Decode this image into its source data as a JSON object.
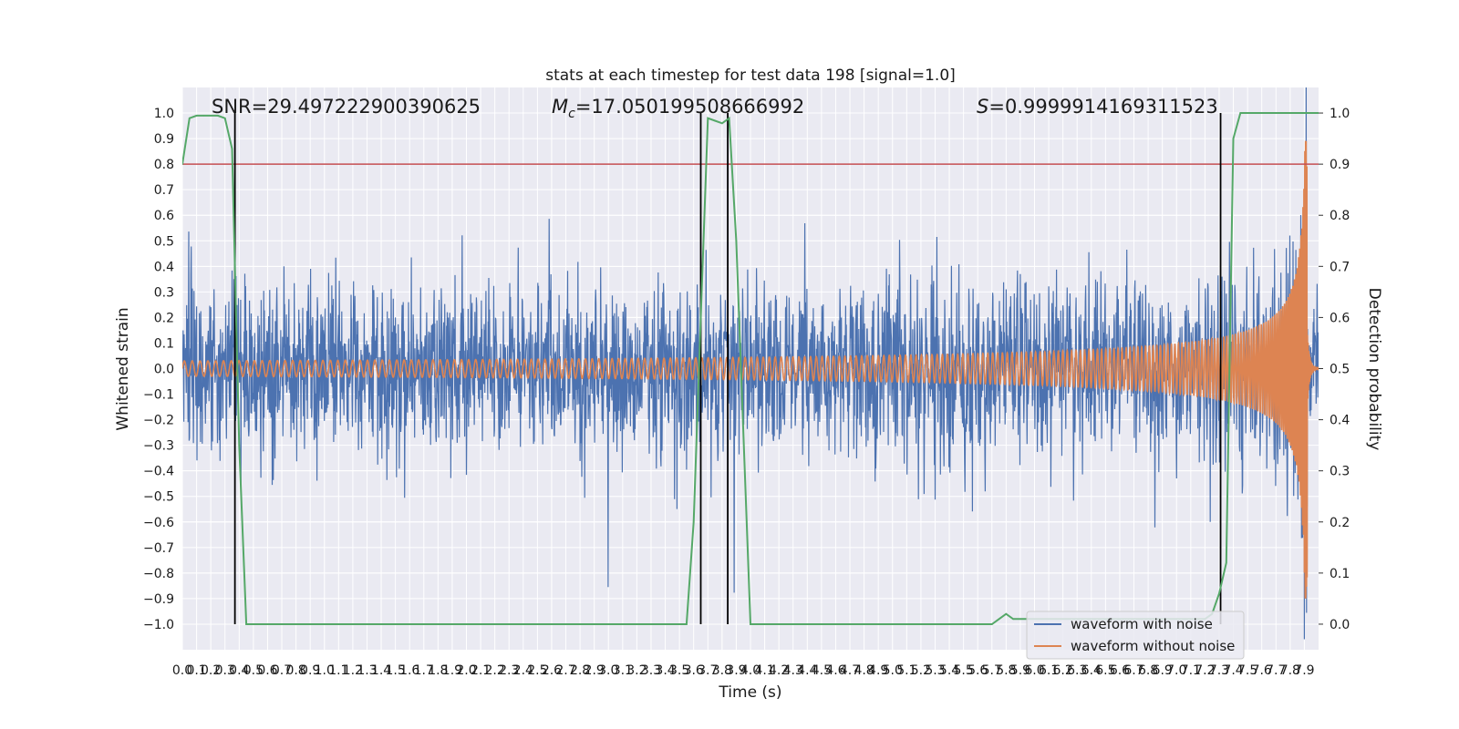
{
  "chart_data": {
    "type": "line",
    "title": "stats at each timestep for test data 198 [signal=1.0]",
    "xlabel": "Time (s)",
    "ylabel": "Whitened strain",
    "y2label": "Detection probability",
    "xlim": [
      0.0,
      8.0
    ],
    "ylim": [
      -1.1,
      1.1
    ],
    "y2lim": [
      -0.05,
      1.05
    ],
    "x_ticks": [
      0.0,
      0.1,
      0.2,
      0.3,
      0.4,
      0.5,
      0.6,
      0.7,
      0.8,
      0.9,
      1.0,
      1.1,
      1.2,
      1.3,
      1.4,
      1.5,
      1.6,
      1.7,
      1.8,
      1.9,
      2.0,
      2.1,
      2.2,
      2.3,
      2.4,
      2.5,
      2.6,
      2.7,
      2.8,
      2.9,
      3.0,
      3.1,
      3.2,
      3.3,
      3.4,
      3.5,
      3.6,
      3.7,
      3.8,
      3.9,
      4.0,
      4.1,
      4.2,
      4.3,
      4.4,
      4.5,
      4.6,
      4.7,
      4.8,
      4.9,
      5.0,
      5.1,
      5.2,
      5.3,
      5.4,
      5.5,
      5.6,
      5.7,
      5.8,
      5.9,
      6.0,
      6.1,
      6.2,
      6.3,
      6.4,
      6.5,
      6.6,
      6.7,
      6.8,
      6.9,
      7.0,
      7.1,
      7.2,
      7.3,
      7.4,
      7.5,
      7.6,
      7.7,
      7.8,
      7.9
    ],
    "y_ticks": [
      -1.0,
      -0.9,
      -0.8,
      -0.7,
      -0.6,
      -0.5,
      -0.4,
      -0.3,
      -0.2,
      -0.1,
      0.0,
      0.1,
      0.2,
      0.3,
      0.4,
      0.5,
      0.6,
      0.7,
      0.8,
      0.9,
      1.0
    ],
    "y2_ticks": [
      0.0,
      0.1,
      0.2,
      0.3,
      0.4,
      0.5,
      0.6,
      0.7,
      0.8,
      0.9,
      1.0
    ],
    "annotations": [
      {
        "text": "SNR=29.497222900390625"
      },
      {
        "text_prefix": "M",
        "text_sub": "c",
        "text_suffix": "=17.050199508666992"
      },
      {
        "text_prefix": "S",
        "text_suffix": "=0.9999914169311523"
      }
    ],
    "series": [
      {
        "name": "waveform with noise",
        "color": "#4c72b0",
        "axis": "left",
        "noise_std": 0.16,
        "sample_step": 0.0025
      },
      {
        "name": "waveform without noise",
        "color": "#dd8452",
        "axis": "left",
        "start_amplitude": 0.03,
        "peak_amplitude": 0.9,
        "merger_time": 7.92,
        "start_frequency": 18
      }
    ],
    "detection_probability": {
      "color": "#55a868",
      "axis": "right",
      "t": [
        0.0,
        0.05,
        0.1,
        0.15,
        0.2,
        0.25,
        0.3,
        0.35,
        0.4,
        0.45,
        3.55,
        3.6,
        3.65,
        3.7,
        3.75,
        3.8,
        3.85,
        3.9,
        4.0,
        5.7,
        5.75,
        5.8,
        5.85,
        7.2,
        7.25,
        7.3,
        7.35,
        7.4,
        7.45,
        8.0
      ],
      "p": [
        0.9,
        0.99,
        0.995,
        0.995,
        0.995,
        0.995,
        0.99,
        0.93,
        0.35,
        0.0,
        0.0,
        0.2,
        0.6,
        0.99,
        0.985,
        0.98,
        0.99,
        0.75,
        0.0,
        0.0,
        0.01,
        0.02,
        0.01,
        0.01,
        0.02,
        0.06,
        0.12,
        0.95,
        1.0,
        1.0
      ]
    },
    "threshold": {
      "value": 0.9,
      "axis": "right",
      "color": "#c44e52"
    },
    "detection_markers": {
      "x": [
        0.37,
        3.65,
        3.84,
        7.31
      ],
      "ymin": -1.0,
      "ymax": 1.0,
      "color": "#000000"
    },
    "legend": {
      "position": "bottom-right",
      "entries": [
        {
          "label": "waveform with noise",
          "color": "#4c72b0"
        },
        {
          "label": "waveform without noise",
          "color": "#dd8452"
        }
      ]
    },
    "grid": true,
    "background": "#eaeaf2",
    "grid_color": "#ffffff"
  }
}
